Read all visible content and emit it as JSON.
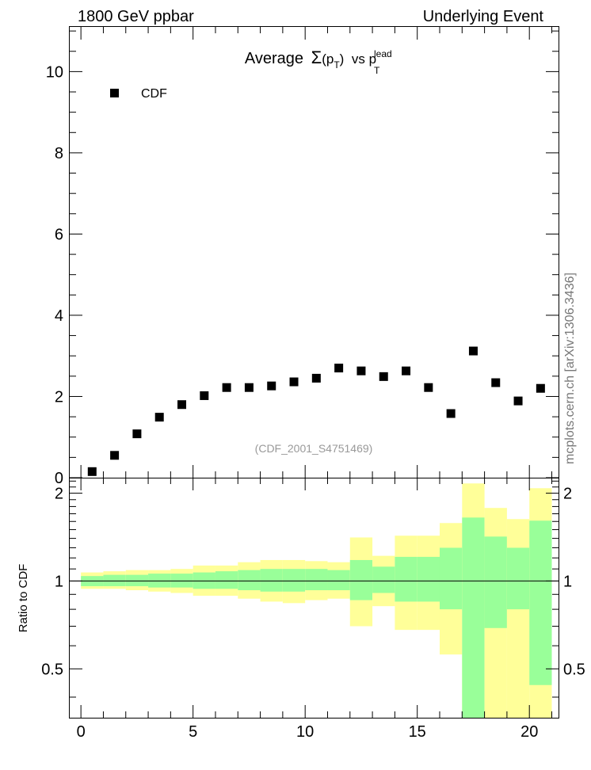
{
  "header": {
    "left": "1800 GeV ppbar",
    "right": "Underlying Event"
  },
  "watermark": "mcplots.cern.ch [arXiv:1306.3436]",
  "analysis_id": "(CDF_2001_S4751469)",
  "colors": {
    "band_outer": "#ffff99",
    "band_inner": "#99ff99",
    "marker": "#000000",
    "analysis_text": "#999999",
    "watermark_text": "#777777"
  },
  "chart_data": [
    {
      "type": "scatter",
      "title": {
        "prefix": "Average",
        "sigma": "Σ",
        "p": "(p",
        "p_sub": "T",
        "close": ")",
        "vs": "vs p",
        "lead_sup": "lead",
        "lead_sub": "T"
      },
      "xlim": [
        -0.5,
        21.3
      ],
      "ylim": [
        0,
        11.1
      ],
      "y_ticks": [
        0,
        2,
        4,
        6,
        8,
        10
      ],
      "legend": {
        "placement": "top-left",
        "entries": [
          "CDF"
        ]
      },
      "series": [
        {
          "name": "CDF",
          "x": [
            0.5,
            1.5,
            2.5,
            3.5,
            4.5,
            5.5,
            6.5,
            7.5,
            8.5,
            9.5,
            10.5,
            11.5,
            12.5,
            13.5,
            14.5,
            15.5,
            16.5,
            17.5,
            18.5,
            19.5,
            20.5
          ],
          "y": [
            0.15,
            0.55,
            1.08,
            1.49,
            1.8,
            2.02,
            2.22,
            2.22,
            2.26,
            2.36,
            2.45,
            2.7,
            2.63,
            2.49,
            2.63,
            2.22,
            1.58,
            3.12,
            2.34,
            1.89,
            2.2
          ]
        }
      ]
    },
    {
      "type": "area",
      "ylabel": "Ratio to CDF",
      "xlim": [
        -0.5,
        21.3
      ],
      "ylim": [
        0.34,
        2.26
      ],
      "x_ticks": [
        0,
        5,
        10,
        15,
        20
      ],
      "y_ticks": [
        0.5,
        1,
        2
      ],
      "reference_line": 1,
      "bands": {
        "edges": [
          0,
          1,
          2,
          3,
          4,
          5,
          6,
          7,
          8,
          9,
          10,
          11,
          12,
          13,
          14,
          15,
          16,
          17,
          18,
          19,
          20,
          21
        ],
        "outer_low": [
          0.94,
          0.94,
          0.93,
          0.92,
          0.91,
          0.89,
          0.89,
          0.87,
          0.85,
          0.84,
          0.86,
          0.87,
          0.7,
          0.82,
          0.68,
          0.68,
          0.56,
          0.34,
          0.34,
          0.34,
          0.34
        ],
        "outer_high": [
          1.07,
          1.08,
          1.09,
          1.09,
          1.1,
          1.13,
          1.13,
          1.16,
          1.18,
          1.18,
          1.17,
          1.16,
          1.41,
          1.22,
          1.43,
          1.43,
          1.58,
          2.16,
          1.78,
          1.63,
          2.08
        ],
        "inner_low": [
          0.96,
          0.96,
          0.96,
          0.95,
          0.95,
          0.94,
          0.94,
          0.93,
          0.92,
          0.92,
          0.93,
          0.93,
          0.86,
          0.91,
          0.85,
          0.85,
          0.8,
          0.34,
          0.69,
          0.8,
          0.44
        ],
        "inner_high": [
          1.04,
          1.05,
          1.05,
          1.06,
          1.06,
          1.07,
          1.08,
          1.09,
          1.1,
          1.1,
          1.1,
          1.09,
          1.18,
          1.12,
          1.21,
          1.21,
          1.3,
          1.65,
          1.42,
          1.3,
          1.61
        ]
      }
    }
  ]
}
